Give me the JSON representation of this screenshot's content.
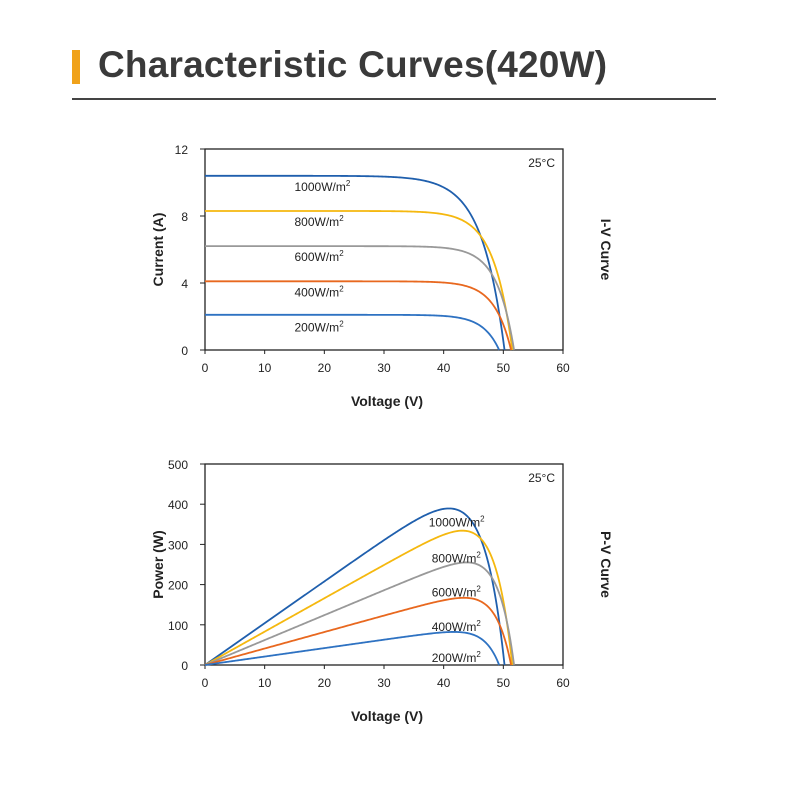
{
  "header": {
    "title": "Characteristic Curves(420W)"
  },
  "colors": {
    "accent": "#f0a21a",
    "c1000": "#1f5fad",
    "c800": "#f5b80f",
    "c600": "#999999",
    "c400": "#e8681f",
    "c200": "#2e72c2"
  },
  "chart_data": [
    {
      "type": "line",
      "title": "I-V Curve",
      "temperature": "25°C",
      "xlabel": "Voltage (V)",
      "ylabel": "Current (A)",
      "xlim": [
        0,
        60
      ],
      "ylim": [
        0,
        12
      ],
      "xticks": [
        0,
        10,
        20,
        30,
        40,
        50,
        60
      ],
      "yticks": [
        0,
        4,
        8,
        12
      ],
      "series": [
        {
          "name": "1000W/m²",
          "color": "#1f5fad",
          "isc": 10.4,
          "voc": 50.2,
          "a": 0.075
        },
        {
          "name": "800W/m²",
          "color": "#f5b80f",
          "isc": 8.3,
          "voc": 51.5,
          "a": 0.06
        },
        {
          "name": "600W/m²",
          "color": "#999999",
          "isc": 6.2,
          "voc": 51.8,
          "a": 0.055
        },
        {
          "name": "400W/m²",
          "color": "#e8681f",
          "isc": 4.1,
          "voc": 51.3,
          "a": 0.055
        },
        {
          "name": "200W/m²",
          "color": "#2e72c2",
          "isc": 2.1,
          "voc": 49.3,
          "a": 0.055
        }
      ],
      "labels": [
        {
          "text": "1000W/m",
          "sup": "2",
          "x": 15.0,
          "y": 9.5
        },
        {
          "text": "800W/m",
          "sup": "2",
          "x": 15.0,
          "y": 7.4
        },
        {
          "text": "600W/m",
          "sup": "2",
          "x": 15.0,
          "y": 5.3
        },
        {
          "text": "400W/m",
          "sup": "2",
          "x": 15.0,
          "y": 3.2
        },
        {
          "text": "200W/m",
          "sup": "2",
          "x": 15.0,
          "y": 1.1
        }
      ]
    },
    {
      "type": "line",
      "title": "P-V Curve",
      "temperature": "25°C",
      "xlabel": "Voltage (V)",
      "ylabel": "Power (W)",
      "xlim": [
        0,
        60
      ],
      "ylim": [
        0,
        500
      ],
      "xticks": [
        0,
        10,
        20,
        30,
        40,
        50,
        60
      ],
      "yticks": [
        0,
        100,
        200,
        300,
        400,
        500
      ],
      "series": [
        {
          "name": "1000W/m²",
          "color": "#1f5fad",
          "isc": 10.4,
          "voc": 50.2,
          "a": 0.075
        },
        {
          "name": "800W/m²",
          "color": "#f5b80f",
          "isc": 8.3,
          "voc": 51.5,
          "a": 0.06
        },
        {
          "name": "600W/m²",
          "color": "#999999",
          "isc": 6.2,
          "voc": 51.8,
          "a": 0.055
        },
        {
          "name": "400W/m²",
          "color": "#e8681f",
          "isc": 4.1,
          "voc": 51.3,
          "a": 0.055
        },
        {
          "name": "200W/m²",
          "color": "#2e72c2",
          "isc": 2.1,
          "voc": 49.3,
          "a": 0.055
        }
      ],
      "labels": [
        {
          "text": "1000W/m",
          "sup": "2",
          "x": 37.5,
          "y": 345
        },
        {
          "text": "800W/m",
          "sup": "2",
          "x": 38.0,
          "y": 255
        },
        {
          "text": "600W/m",
          "sup": "2",
          "x": 38.0,
          "y": 170
        },
        {
          "text": "400W/m",
          "sup": "2",
          "x": 38.0,
          "y": 85
        },
        {
          "text": "200W/m",
          "sup": "2",
          "x": 38.0,
          "y": 8
        }
      ]
    }
  ]
}
